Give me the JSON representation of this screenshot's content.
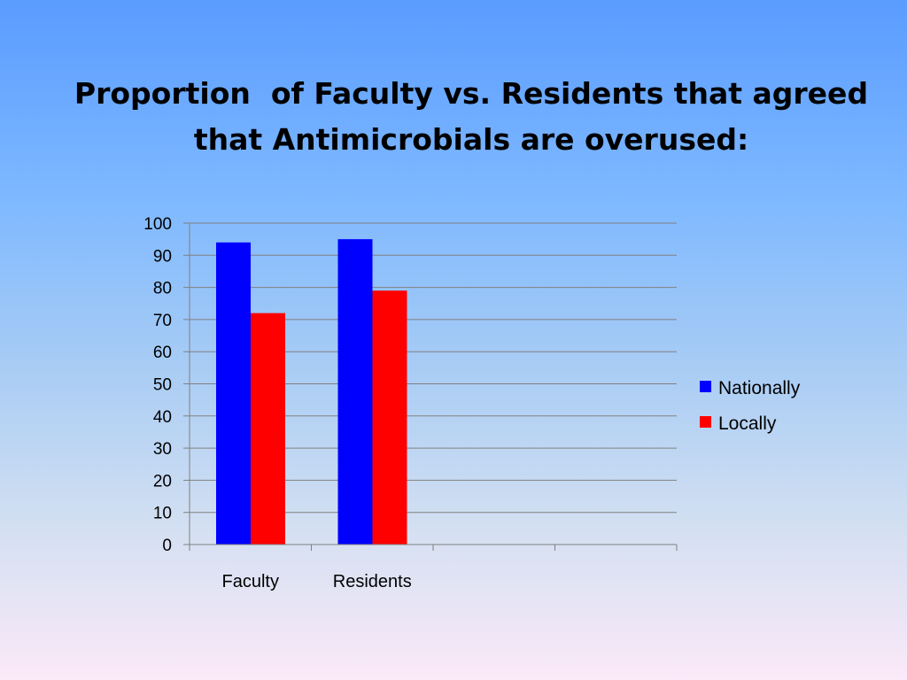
{
  "slide": {
    "title_line1": "Proportion  of Faculty vs. Residents that agreed",
    "title_line2": "that Antimicrobials are overused:"
  },
  "chart_data": {
    "type": "bar",
    "categories": [
      "Faculty",
      "Residents",
      "",
      ""
    ],
    "series": [
      {
        "name": "Nationally",
        "values": [
          94,
          95,
          null,
          null
        ],
        "color": "#0000ff"
      },
      {
        "name": "Locally",
        "values": [
          72,
          79,
          null,
          null
        ],
        "color": "#ff0000"
      }
    ],
    "ylim": [
      0,
      100
    ],
    "yticks": [
      "0",
      "10",
      "20",
      "30",
      "40",
      "50",
      "60",
      "70",
      "80",
      "90",
      "100"
    ],
    "grid": true,
    "legend": "right",
    "xlabel": "",
    "ylabel": ""
  }
}
